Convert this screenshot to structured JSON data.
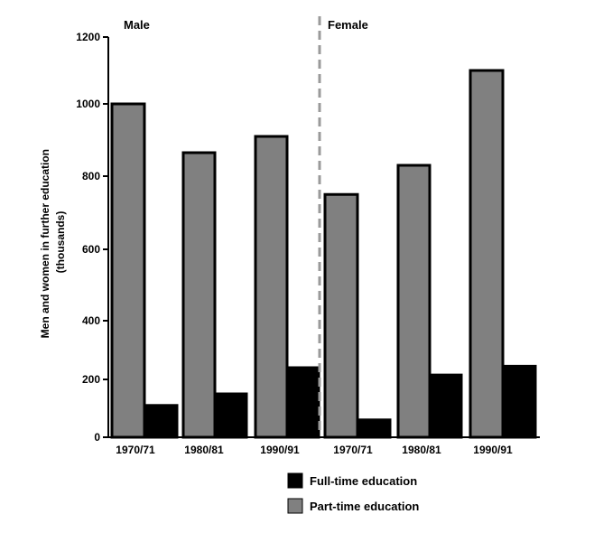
{
  "chart_data": {
    "type": "bar",
    "categories": [
      "1970/71",
      "1980/81",
      "1990/91",
      "1970/71",
      "1980/81",
      "1990/91"
    ],
    "groups": [
      {
        "label": "Male",
        "category_indices": [
          0,
          1,
          2
        ]
      },
      {
        "label": "Female",
        "category_indices": [
          3,
          4,
          5
        ]
      }
    ],
    "series": [
      {
        "name": "Part-time education",
        "color": "#808080",
        "values": [
          1000,
          865,
          910,
          750,
          830,
          1100
        ]
      },
      {
        "name": "Full-time education",
        "color": "#000000",
        "values": [
          110,
          150,
          240,
          60,
          215,
          245
        ]
      }
    ],
    "ylabel_lines": [
      "Men and women in further education",
      "(thousands)"
    ],
    "yticks": [
      0,
      200,
      400,
      600,
      800,
      1000,
      1200
    ],
    "ylim": [
      0,
      1200
    ],
    "y_scale": "nonlinear-as-drawn",
    "legend": {
      "placement": "bottom-center",
      "order": [
        1,
        0
      ]
    },
    "grid": false,
    "group_separator": "dashed"
  }
}
